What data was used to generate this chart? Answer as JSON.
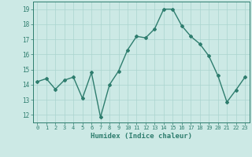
{
  "x": [
    0,
    1,
    2,
    3,
    4,
    5,
    6,
    7,
    8,
    9,
    10,
    11,
    12,
    13,
    14,
    15,
    16,
    17,
    18,
    19,
    20,
    21,
    22,
    23
  ],
  "y": [
    14.2,
    14.4,
    13.7,
    14.3,
    14.5,
    13.1,
    14.8,
    11.85,
    14.0,
    14.9,
    16.3,
    17.2,
    17.1,
    17.7,
    19.0,
    19.0,
    17.9,
    17.2,
    16.7,
    15.9,
    14.6,
    12.85,
    13.65,
    14.5
  ],
  "line_color": "#2e7d6e",
  "bg_color": "#cce9e5",
  "grid_color": "#aad4cf",
  "text_color": "#2e7d6e",
  "xlabel": "Humidex (Indice chaleur)",
  "ylim": [
    11.5,
    19.5
  ],
  "xlim": [
    -0.5,
    23.5
  ],
  "yticks": [
    12,
    13,
    14,
    15,
    16,
    17,
    18,
    19
  ],
  "xticks": [
    0,
    1,
    2,
    3,
    4,
    5,
    6,
    7,
    8,
    9,
    10,
    11,
    12,
    13,
    14,
    15,
    16,
    17,
    18,
    19,
    20,
    21,
    22,
    23
  ],
  "xtick_labels": [
    "0",
    "1",
    "2",
    "3",
    "4",
    "5",
    "6",
    "7",
    "8",
    "9",
    "10",
    "11",
    "12",
    "13",
    "14",
    "15",
    "16",
    "17",
    "18",
    "19",
    "20",
    "21",
    "22",
    "23"
  ],
  "marker": "D",
  "marker_size": 2.0,
  "line_width": 1.0
}
